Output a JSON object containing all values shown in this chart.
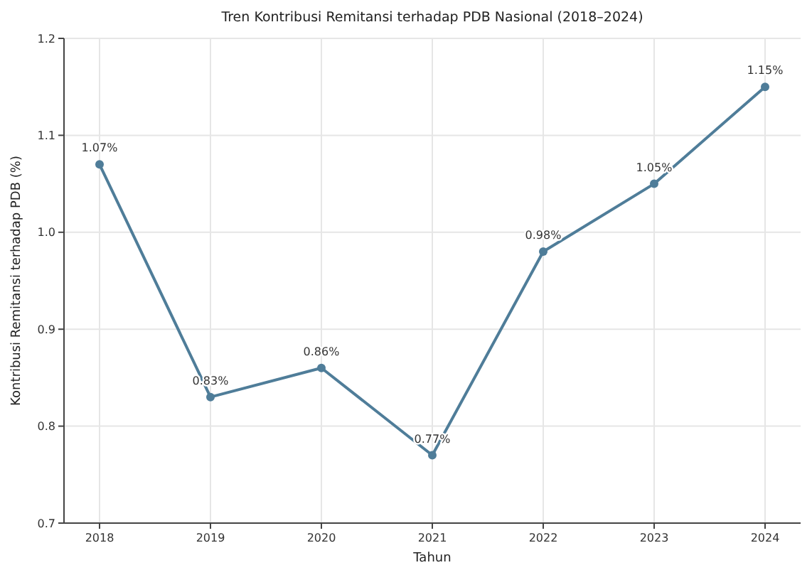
{
  "chart_data": {
    "type": "line",
    "title": "Tren Kontribusi Remitansi terhadap PDB Nasional (2018–2024)",
    "xlabel": "Tahun",
    "ylabel": "Kontribusi Remitansi terhadap PDB (%)",
    "categories": [
      "2018",
      "2019",
      "2020",
      "2021",
      "2022",
      "2023",
      "2024"
    ],
    "series": [
      {
        "color": "#4f7d99",
        "values": [
          1.07,
          0.83,
          0.86,
          0.77,
          0.98,
          1.05,
          1.15
        ],
        "value_labels": [
          "1.07%",
          "0.83%",
          "0.86%",
          "0.77%",
          "0.98%",
          "1.05%",
          "1.15%"
        ]
      }
    ],
    "ylim": [
      0.7,
      1.2
    ],
    "yticks": [
      0.7,
      0.8,
      0.9,
      {
        "value": 1,
        "label": "1.0"
      },
      1.1,
      1.2
    ],
    "grid": true,
    "marker": "circle",
    "line_style": "solid"
  }
}
